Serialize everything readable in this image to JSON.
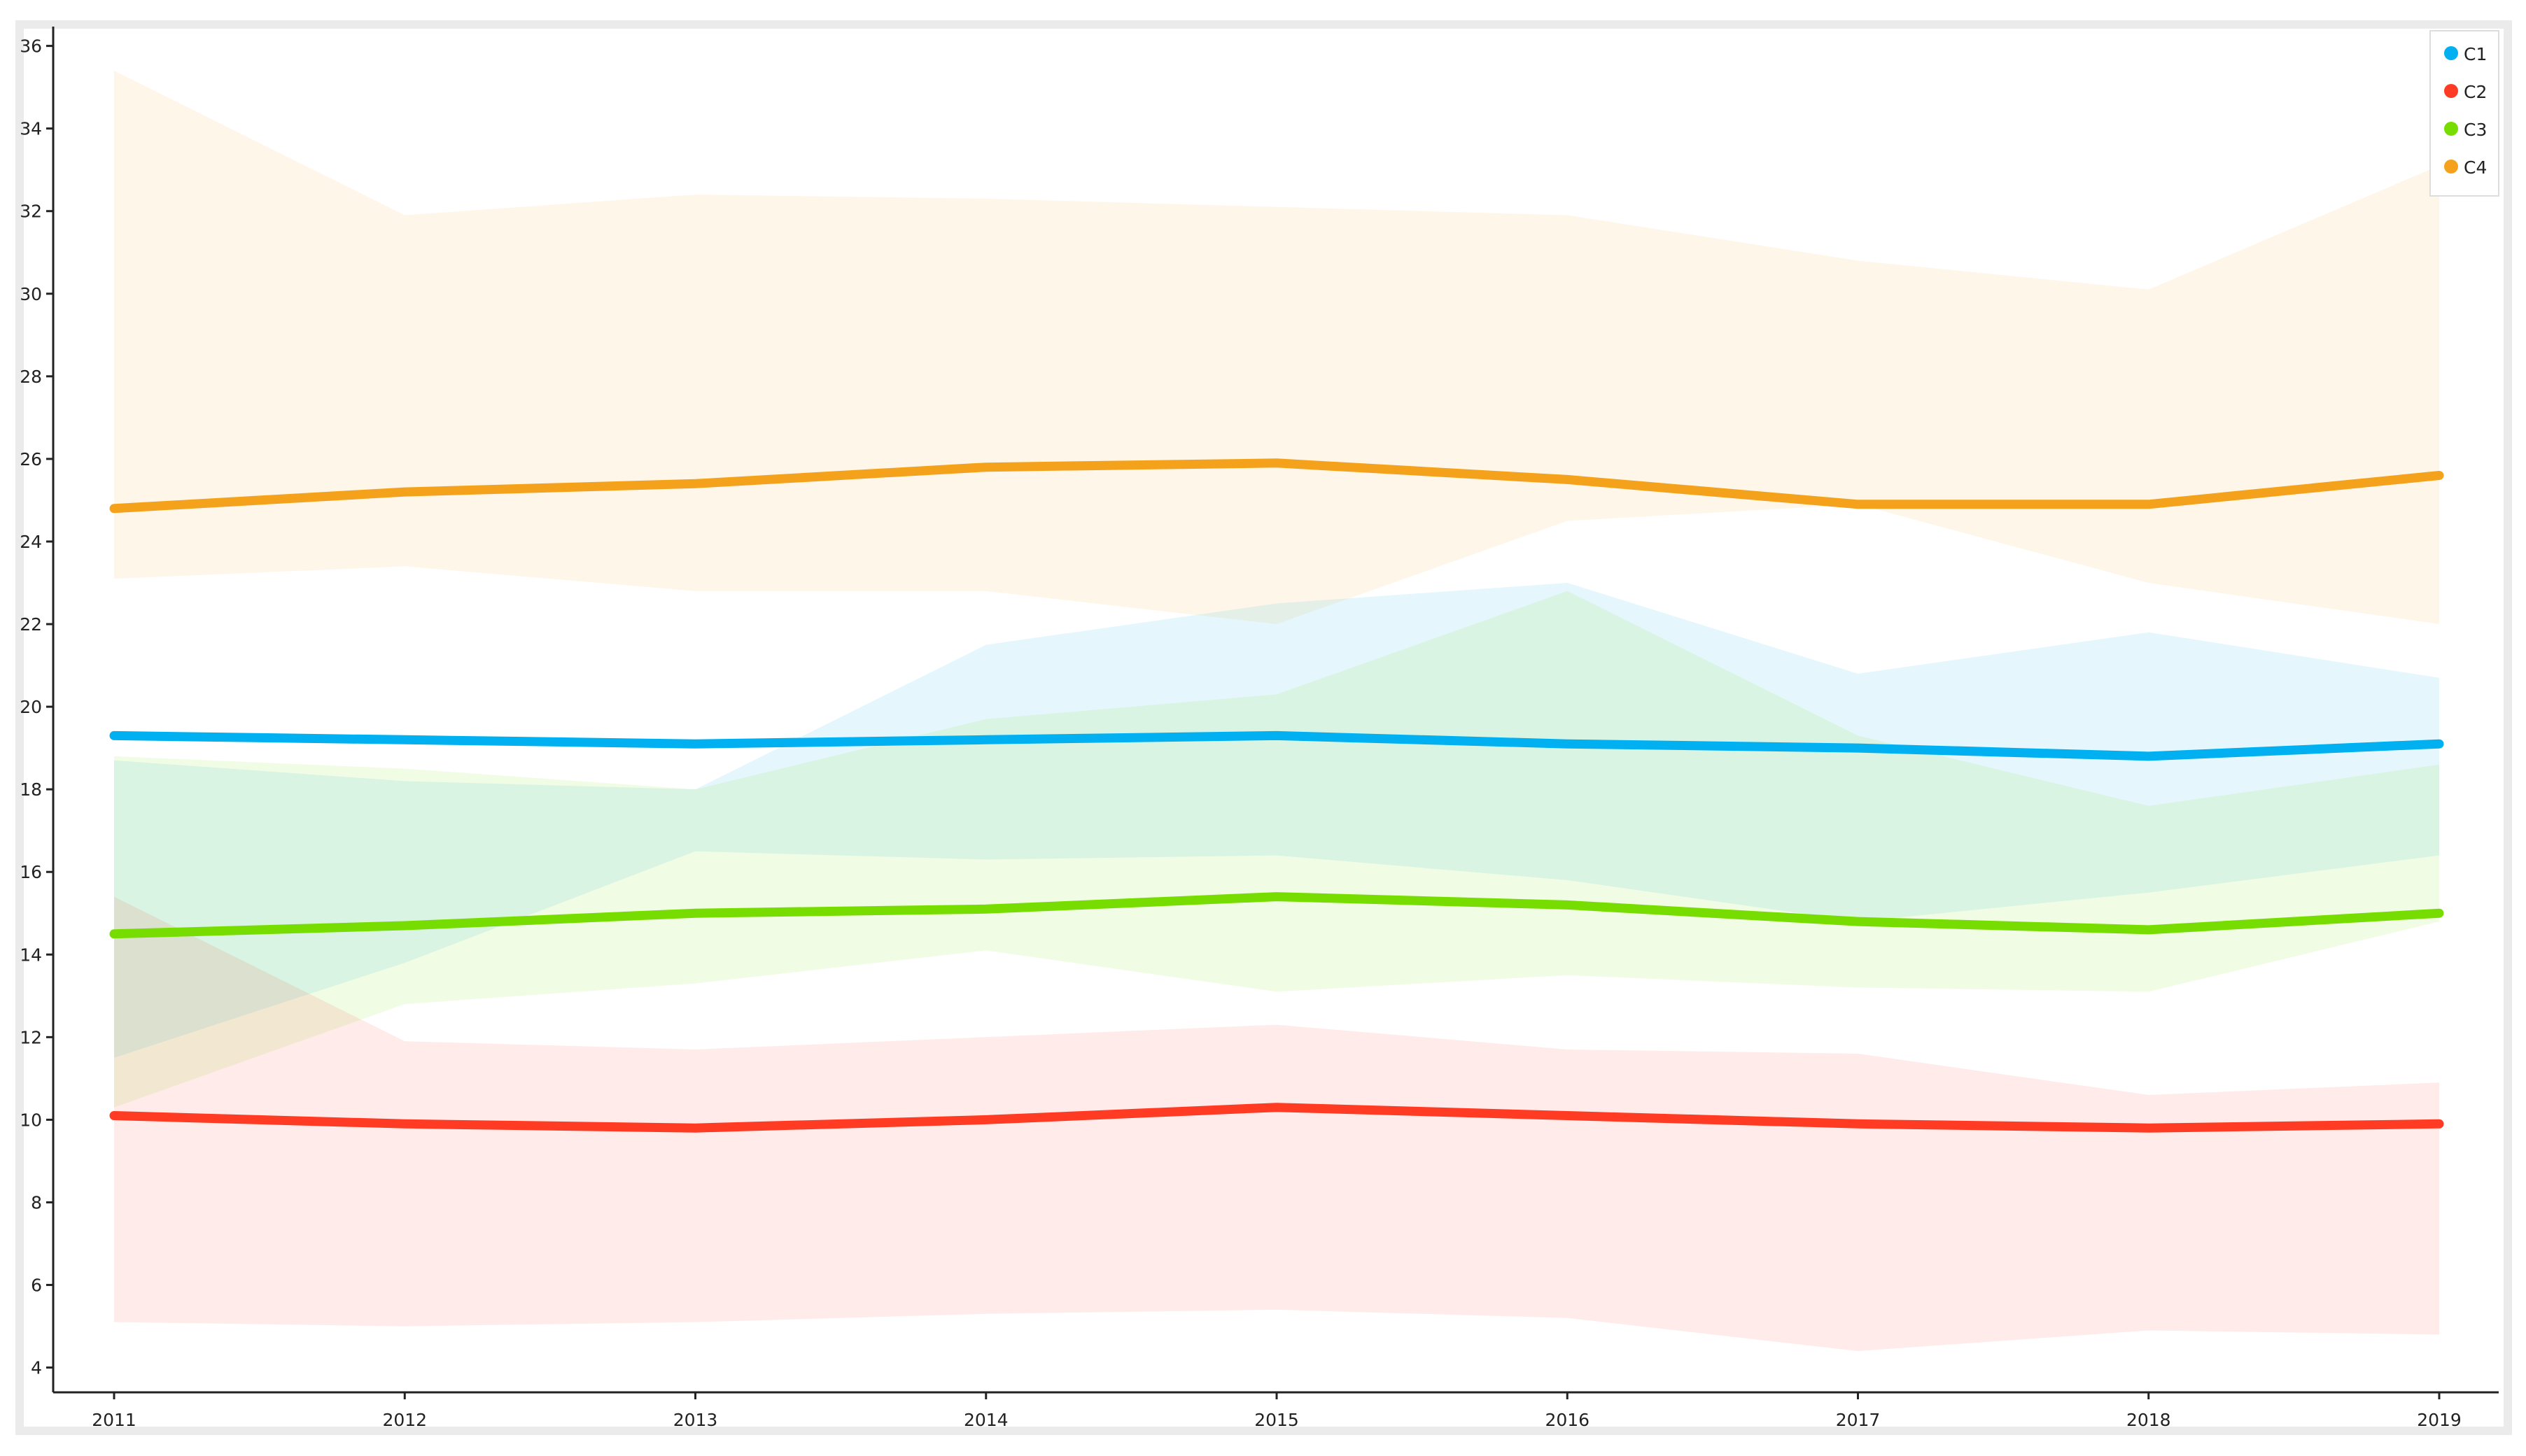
{
  "chart_data": {
    "type": "line",
    "title": "",
    "xlabel": "",
    "ylabel": "",
    "x": [
      "2011",
      "2012",
      "2013",
      "2014",
      "2015",
      "2016",
      "2017",
      "2018",
      "2019"
    ],
    "ylim": [
      3.4,
      36.4
    ],
    "yticks": [
      4,
      6,
      8,
      10,
      12,
      14,
      16,
      18,
      20,
      22,
      24,
      26,
      28,
      30,
      32,
      34,
      36
    ],
    "grid": false,
    "legend_position": "top-right",
    "series": [
      {
        "name": "C1",
        "color": "#00b0f0",
        "band_color": "#e6f6fd",
        "values": [
          19.3,
          19.2,
          19.1,
          19.2,
          19.3,
          19.1,
          19.0,
          18.8,
          19.1
        ],
        "upper": [
          18.7,
          18.2,
          18.0,
          21.5,
          22.5,
          23.0,
          20.8,
          21.8,
          20.7
        ],
        "lower": [
          11.5,
          13.8,
          16.5,
          16.3,
          16.4,
          15.8,
          14.8,
          15.5,
          16.4
        ]
      },
      {
        "name": "C2",
        "color": "#ff3b24",
        "band_color": "#fdeeea",
        "values": [
          10.1,
          9.9,
          9.8,
          10.0,
          10.3,
          10.1,
          9.9,
          9.8,
          9.9
        ],
        "upper": [
          15.4,
          11.9,
          11.7,
          12.0,
          12.3,
          11.7,
          11.6,
          10.6,
          10.9
        ],
        "lower": [
          5.1,
          5.0,
          5.1,
          5.3,
          5.4,
          5.2,
          4.4,
          4.9,
          4.8
        ]
      },
      {
        "name": "C3",
        "color": "#77dd00",
        "band_color": "#e2f8e4",
        "values": [
          14.5,
          14.7,
          15.0,
          15.1,
          15.4,
          15.2,
          14.8,
          14.6,
          15.0
        ],
        "upper": [
          18.8,
          18.5,
          18.0,
          19.7,
          20.3,
          22.8,
          19.3,
          17.6,
          18.6
        ],
        "lower": [
          10.3,
          12.8,
          13.3,
          14.1,
          13.1,
          13.5,
          13.2,
          13.1,
          14.8
        ]
      },
      {
        "name": "C4",
        "color": "#f4a21c",
        "band_color": "#fef5ea",
        "values": [
          24.8,
          25.2,
          25.4,
          25.8,
          25.9,
          25.5,
          24.9,
          24.9,
          25.6
        ],
        "upper": [
          35.4,
          31.9,
          32.4,
          32.3,
          32.1,
          31.9,
          30.8,
          30.1,
          33.1
        ],
        "lower": [
          23.1,
          23.4,
          22.8,
          22.8,
          22.0,
          24.5,
          24.9,
          23.0,
          22.0
        ]
      }
    ]
  }
}
